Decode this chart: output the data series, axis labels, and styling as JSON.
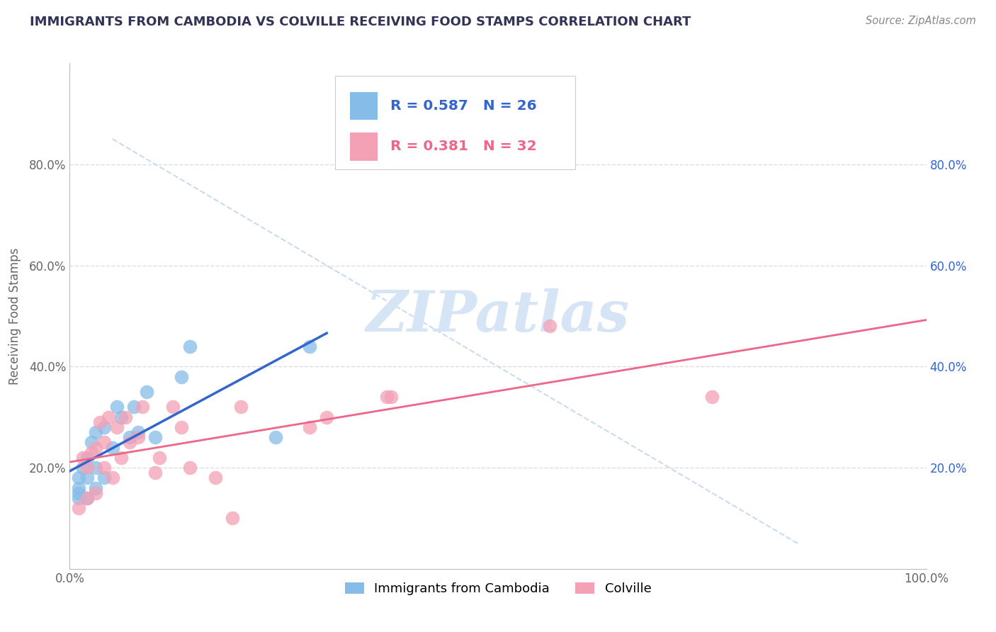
{
  "title": "IMMIGRANTS FROM CAMBODIA VS COLVILLE RECEIVING FOOD STAMPS CORRELATION CHART",
  "source": "Source: ZipAtlas.com",
  "ylabel": "Receiving Food Stamps",
  "xlabel": "",
  "xlim": [
    0.0,
    100.0
  ],
  "ylim": [
    0.0,
    100.0
  ],
  "xtick_values": [
    0.0,
    100.0
  ],
  "xtick_labels": [
    "0.0%",
    "100.0%"
  ],
  "ytick_values": [
    20.0,
    40.0,
    60.0,
    80.0
  ],
  "ytick_labels": [
    "20.0%",
    "40.0%",
    "60.0%",
    "80.0%"
  ],
  "legend_label1": "Immigrants from Cambodia",
  "legend_label2": "Colville",
  "R1": "0.587",
  "N1": "26",
  "R2": "0.381",
  "N2": "32",
  "color1": "#85BCE8",
  "color2": "#F4A0B5",
  "line_color1": "#3366CC",
  "line_color2": "#EE6688",
  "diag_color": "#C5D8EE",
  "watermark_color": "#D5E5F5",
  "background_color": "#FFFFFF",
  "title_color": "#333355",
  "source_color": "#888888",
  "grid_color": "#DDDDDD",
  "scatter1_x": [
    1.0,
    1.0,
    1.0,
    1.0,
    1.5,
    2.0,
    2.0,
    2.0,
    2.5,
    3.0,
    3.0,
    3.0,
    4.0,
    4.0,
    5.0,
    5.5,
    6.0,
    7.0,
    7.5,
    8.0,
    9.0,
    10.0,
    13.0,
    14.0,
    24.0,
    28.0
  ],
  "scatter1_y": [
    14.0,
    15.0,
    16.0,
    18.0,
    20.0,
    14.0,
    18.0,
    22.0,
    25.0,
    16.0,
    20.0,
    27.0,
    18.0,
    28.0,
    24.0,
    32.0,
    30.0,
    26.0,
    32.0,
    27.0,
    35.0,
    26.0,
    38.0,
    44.0,
    26.0,
    44.0
  ],
  "scatter2_x": [
    1.0,
    1.5,
    2.0,
    2.0,
    2.5,
    3.0,
    3.0,
    3.5,
    4.0,
    4.0,
    4.5,
    5.0,
    5.5,
    6.0,
    6.5,
    7.0,
    8.0,
    8.5,
    10.0,
    10.5,
    12.0,
    13.0,
    14.0,
    17.0,
    19.0,
    20.0,
    28.0,
    30.0,
    37.0,
    37.5,
    56.0,
    75.0
  ],
  "scatter2_y": [
    12.0,
    22.0,
    14.0,
    20.0,
    23.0,
    15.0,
    24.0,
    29.0,
    20.0,
    25.0,
    30.0,
    18.0,
    28.0,
    22.0,
    30.0,
    25.0,
    26.0,
    32.0,
    19.0,
    22.0,
    32.0,
    28.0,
    20.0,
    18.0,
    10.0,
    32.0,
    28.0,
    30.0,
    34.0,
    34.0,
    48.0,
    34.0
  ]
}
